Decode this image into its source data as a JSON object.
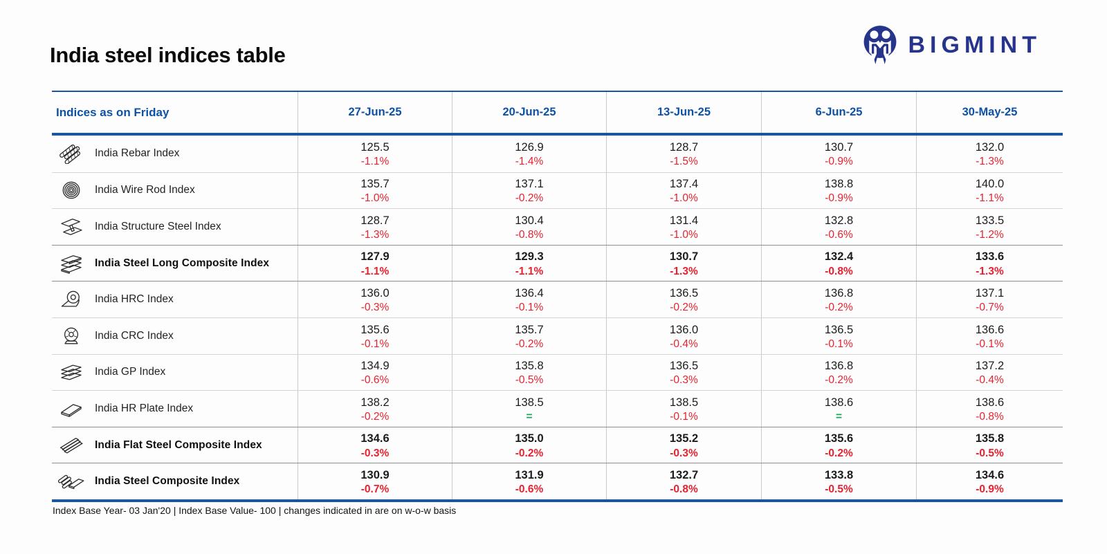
{
  "page": {
    "title": "India steel indices table",
    "footnote": "Index Base Year- 03 Jan'20 | Index Base Value- 100 | changes indicated in are on w-o-w basis"
  },
  "brand": {
    "wordmark": "BIGMINT",
    "logo_icon": "bigmint-monogram-icon",
    "color": "#27348b"
  },
  "colors": {
    "header_blue": "#0d52a8",
    "rule_blue": "#1a55a0",
    "negative_red": "#e8212e",
    "neutral_green": "#19a85a",
    "grid_gray": "#c9c9c9"
  },
  "table": {
    "header": {
      "label": "Indices as on Friday",
      "dates": [
        "27-Jun-25",
        "20-Jun-25",
        "13-Jun-25",
        "6-Jun-25",
        "30-May-25"
      ]
    },
    "rows": [
      {
        "name": "India Rebar Index",
        "icon": "rebar-icon",
        "bold": false,
        "divider": "light",
        "cells": [
          {
            "value": "125.5",
            "change": "-1.1%"
          },
          {
            "value": "126.9",
            "change": "-1.4%"
          },
          {
            "value": "128.7",
            "change": "-1.5%"
          },
          {
            "value": "130.7",
            "change": "-0.9%"
          },
          {
            "value": "132.0",
            "change": "-1.3%"
          }
        ]
      },
      {
        "name": "India Wire Rod Index",
        "icon": "wire-rod-coil-icon",
        "bold": false,
        "divider": "light",
        "cells": [
          {
            "value": "135.7",
            "change": "-1.0%"
          },
          {
            "value": "137.1",
            "change": "-0.2%"
          },
          {
            "value": "137.4",
            "change": "-1.0%"
          },
          {
            "value": "138.8",
            "change": "-0.9%"
          },
          {
            "value": "140.0",
            "change": "-1.1%"
          }
        ]
      },
      {
        "name": "India Structure Steel Index",
        "icon": "i-beam-icon",
        "bold": false,
        "divider": "light",
        "cells": [
          {
            "value": "128.7",
            "change": "-1.3%"
          },
          {
            "value": "130.4",
            "change": "-0.8%"
          },
          {
            "value": "131.4",
            "change": "-1.0%"
          },
          {
            "value": "132.8",
            "change": "-0.6%"
          },
          {
            "value": "133.5",
            "change": "-1.2%"
          }
        ]
      },
      {
        "name": "India Steel Long Composite Index",
        "icon": "long-steel-stack-icon",
        "bold": true,
        "divider": "dark",
        "cells": [
          {
            "value": "127.9",
            "change": "-1.1%"
          },
          {
            "value": "129.3",
            "change": "-1.1%"
          },
          {
            "value": "130.7",
            "change": "-1.3%"
          },
          {
            "value": "132.4",
            "change": "-0.8%"
          },
          {
            "value": "133.6",
            "change": "-1.3%"
          }
        ]
      },
      {
        "name": "India HRC Index",
        "icon": "hrc-coil-icon",
        "bold": false,
        "divider": "dark",
        "cells": [
          {
            "value": "136.0",
            "change": "-0.3%"
          },
          {
            "value": "136.4",
            "change": "-0.1%"
          },
          {
            "value": "136.5",
            "change": "-0.2%"
          },
          {
            "value": "136.8",
            "change": "-0.2%"
          },
          {
            "value": "137.1",
            "change": "-0.7%"
          }
        ]
      },
      {
        "name": "India CRC Index",
        "icon": "crc-coil-icon",
        "bold": false,
        "divider": "light",
        "cells": [
          {
            "value": "135.6",
            "change": "-0.1%"
          },
          {
            "value": "135.7",
            "change": "-0.2%"
          },
          {
            "value": "136.0",
            "change": "-0.4%"
          },
          {
            "value": "136.5",
            "change": "-0.1%"
          },
          {
            "value": "136.6",
            "change": "-0.1%"
          }
        ]
      },
      {
        "name": "India GP Index",
        "icon": "gp-sheets-icon",
        "bold": false,
        "divider": "light",
        "cells": [
          {
            "value": "134.9",
            "change": "-0.6%"
          },
          {
            "value": "135.8",
            "change": "-0.5%"
          },
          {
            "value": "136.5",
            "change": "-0.3%"
          },
          {
            "value": "136.8",
            "change": "-0.2%"
          },
          {
            "value": "137.2",
            "change": "-0.4%"
          }
        ]
      },
      {
        "name": "India HR Plate Index",
        "icon": "hr-plate-icon",
        "bold": false,
        "divider": "light",
        "cells": [
          {
            "value": "138.2",
            "change": "-0.2%"
          },
          {
            "value": "138.5",
            "change": "="
          },
          {
            "value": "138.5",
            "change": "-0.1%"
          },
          {
            "value": "138.6",
            "change": "="
          },
          {
            "value": "138.6",
            "change": "-0.8%"
          }
        ]
      },
      {
        "name": "India Flat Steel Composite Index",
        "icon": "flat-steel-stack-icon",
        "bold": true,
        "divider": "dark",
        "cells": [
          {
            "value": "134.6",
            "change": "-0.3%"
          },
          {
            "value": "135.0",
            "change": "-0.2%"
          },
          {
            "value": "135.2",
            "change": "-0.3%"
          },
          {
            "value": "135.6",
            "change": "-0.2%"
          },
          {
            "value": "135.8",
            "change": "-0.5%"
          }
        ]
      },
      {
        "name": "India Steel Composite Index",
        "icon": "composite-rebar-plate-icon",
        "bold": true,
        "divider": "dark",
        "cells": [
          {
            "value": "130.9",
            "change": "-0.7%"
          },
          {
            "value": "131.9",
            "change": "-0.6%"
          },
          {
            "value": "132.7",
            "change": "-0.8%"
          },
          {
            "value": "133.8",
            "change": "-0.5%"
          },
          {
            "value": "134.6",
            "change": "-0.9%"
          }
        ]
      }
    ]
  }
}
